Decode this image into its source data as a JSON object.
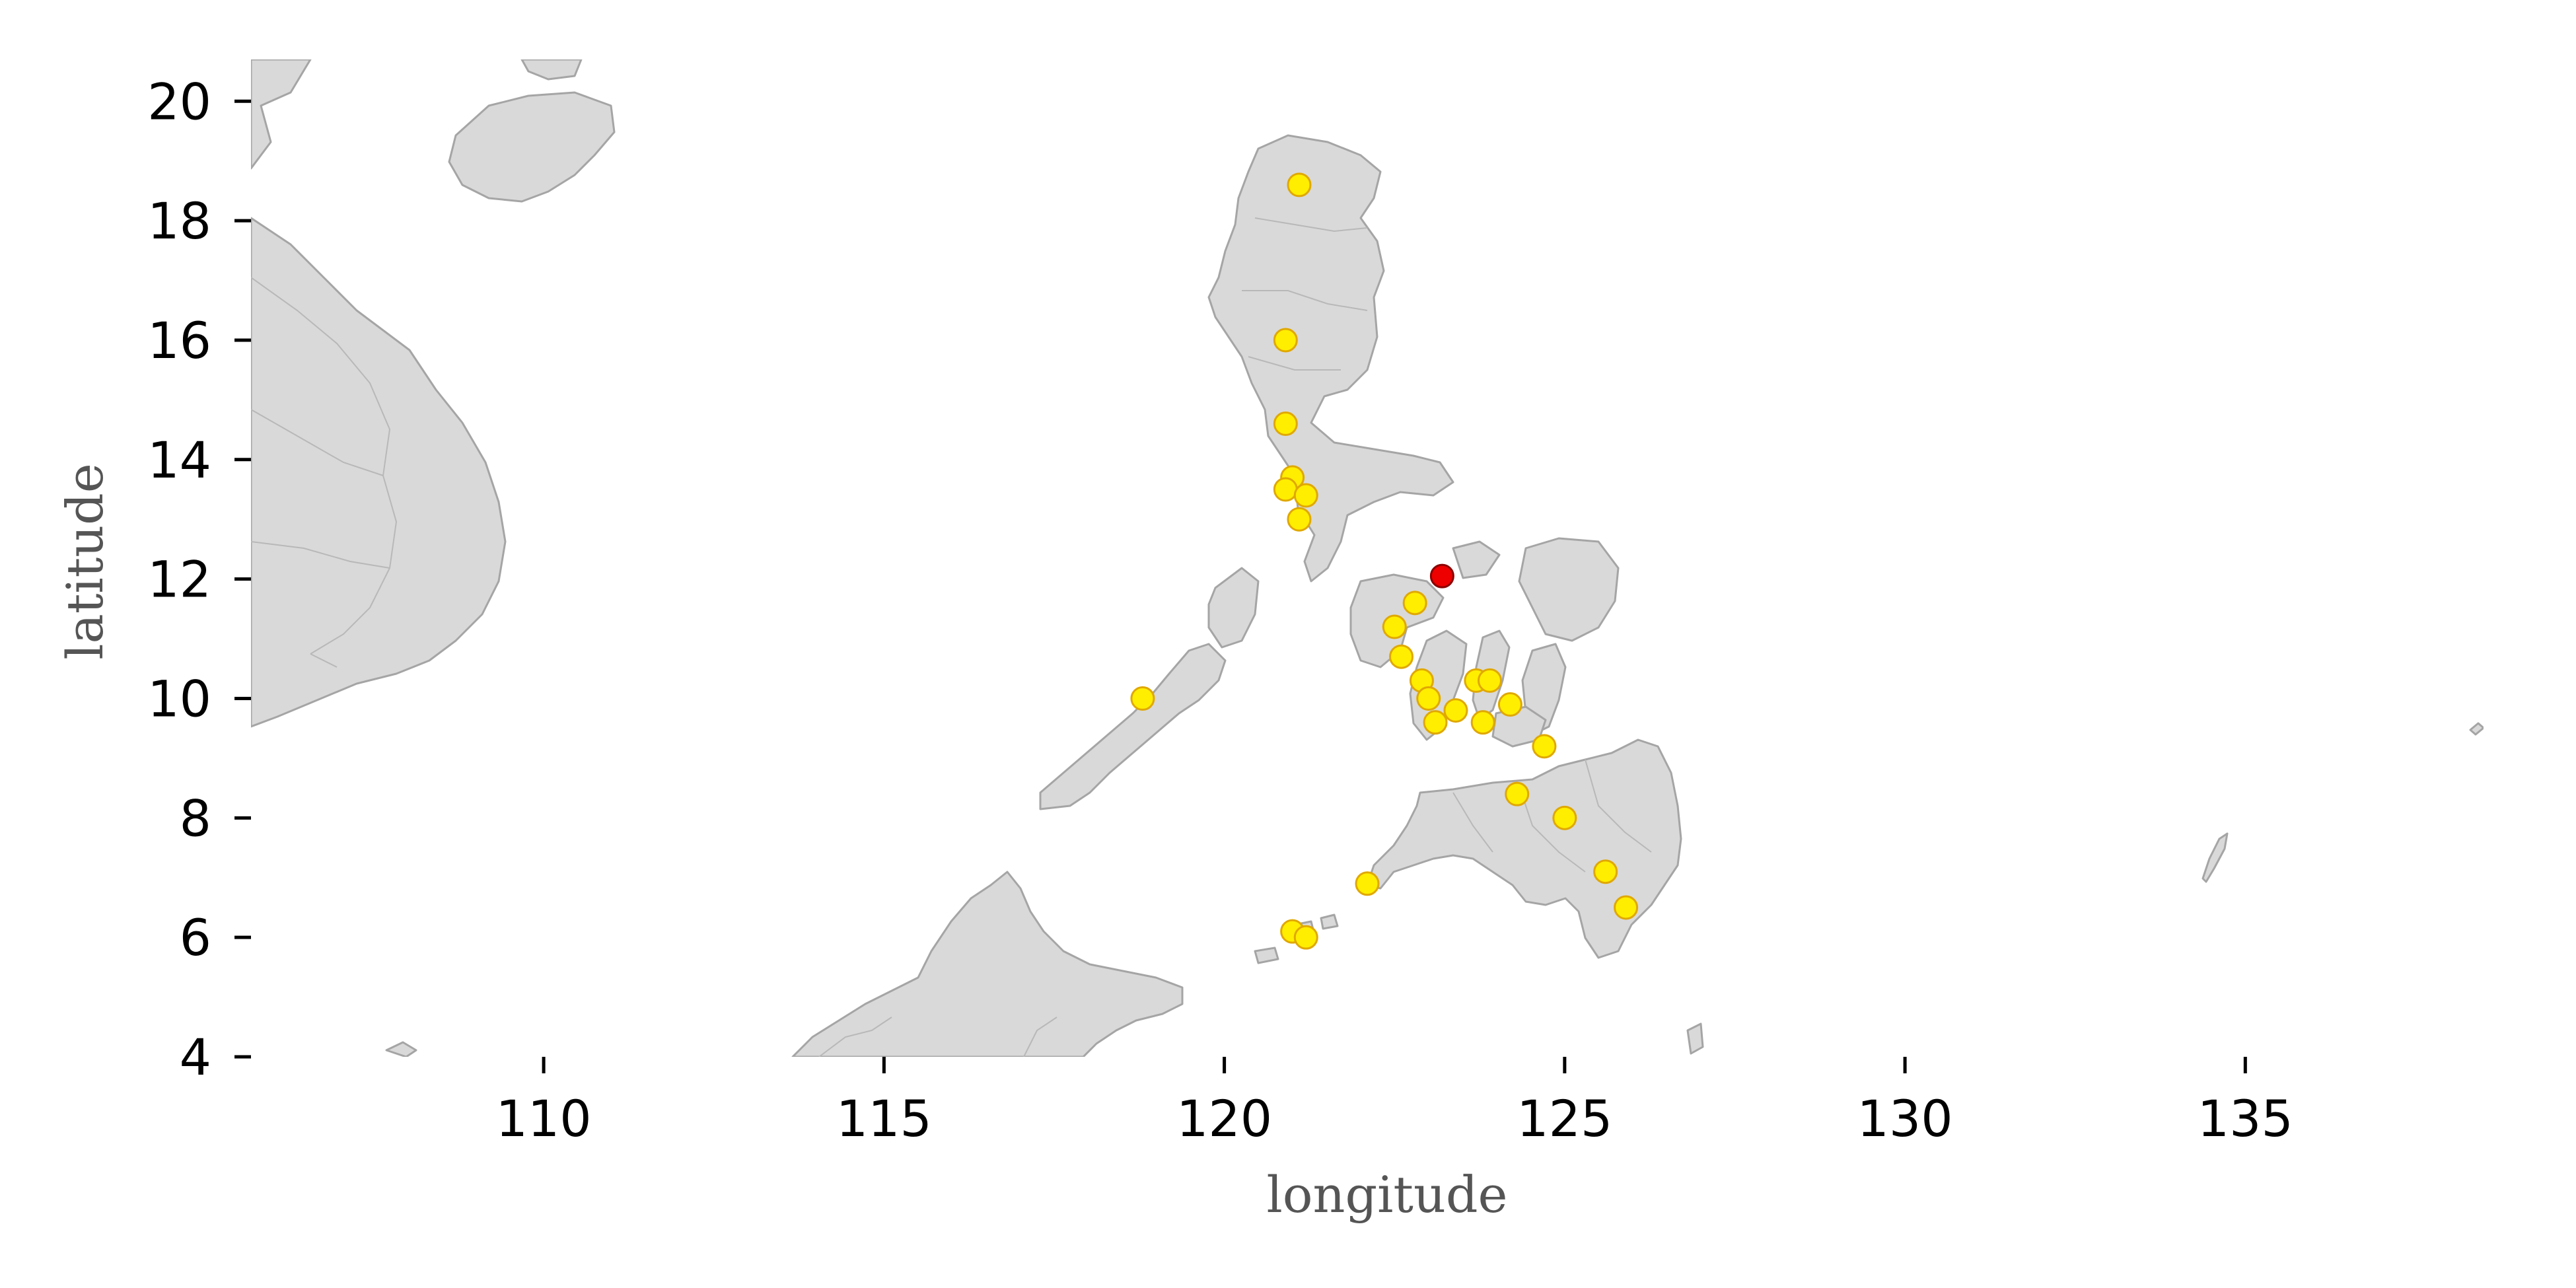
{
  "chart_data": {
    "type": "scatter",
    "title": "",
    "xlabel": "longitude",
    "ylabel": "latitude",
    "xlim": [
      105.7,
      138.5
    ],
    "ylim": [
      4,
      20.7
    ],
    "xticks": [
      110,
      115,
      120,
      125,
      130,
      135
    ],
    "yticks": [
      4,
      6,
      8,
      10,
      12,
      14,
      16,
      18,
      20
    ],
    "grid": false,
    "legend": "none",
    "colors": {
      "land": "#d9d9d9",
      "land_edge": "#a5a5a5",
      "point_fill": "#ffee00",
      "point_edge": "#e0a800",
      "highlight_fill": "#ee0000",
      "highlight_edge": "#8b0000"
    },
    "series": [
      {
        "points": [
          [
            121.1,
            18.6
          ],
          [
            120.9,
            16.0
          ],
          [
            120.9,
            14.6
          ],
          [
            121.0,
            13.7
          ],
          [
            120.9,
            13.5
          ],
          [
            121.2,
            13.4
          ],
          [
            121.1,
            13.0
          ],
          [
            118.8,
            10.0
          ],
          [
            122.8,
            11.6
          ],
          [
            122.5,
            11.2
          ],
          [
            122.6,
            10.7
          ],
          [
            122.9,
            10.3
          ],
          [
            123.0,
            10.0
          ],
          [
            123.1,
            9.6
          ],
          [
            123.4,
            9.8
          ],
          [
            123.7,
            10.3
          ],
          [
            123.9,
            10.3
          ],
          [
            123.8,
            9.6
          ],
          [
            124.2,
            9.9
          ],
          [
            124.7,
            9.2
          ],
          [
            124.3,
            8.4
          ],
          [
            125.0,
            8.0
          ],
          [
            122.1,
            6.9
          ],
          [
            121.0,
            6.1
          ],
          [
            121.2,
            6.0
          ],
          [
            125.6,
            7.1
          ],
          [
            125.9,
            6.5
          ]
        ]
      },
      {
        "points": [
          [
            123.2,
            12.05
          ]
        ]
      }
    ]
  }
}
